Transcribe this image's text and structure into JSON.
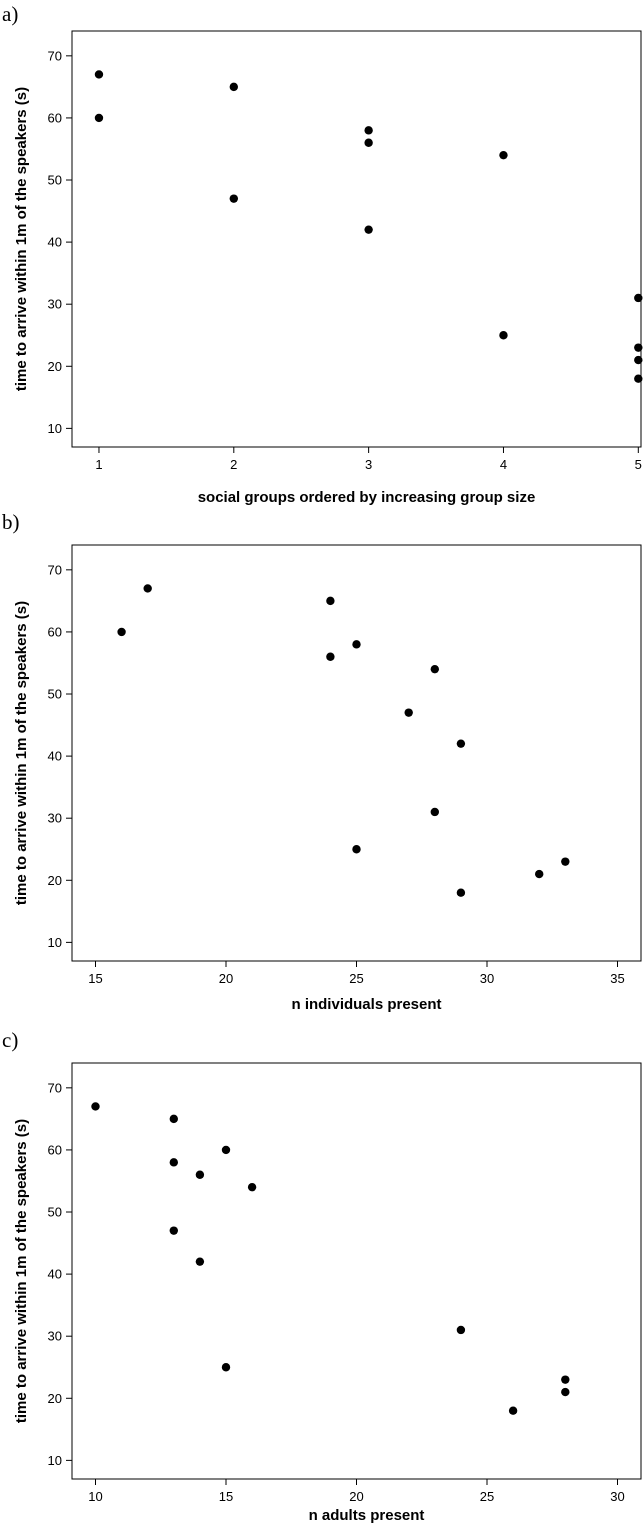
{
  "chart_data": [
    {
      "type": "scatter",
      "panel_label": "a)",
      "xlabel": "social groups ordered by increasing group size",
      "ylabel": "time to arrive within 1m of the speakers (s)",
      "xlim": [
        0.8,
        5.02
      ],
      "ylim": [
        7,
        74
      ],
      "xticks": [
        1,
        2,
        3,
        4,
        5
      ],
      "yticks": [
        10,
        20,
        30,
        40,
        50,
        60,
        70
      ],
      "grid": false,
      "points": [
        {
          "x": 1,
          "y": 67
        },
        {
          "x": 1,
          "y": 60
        },
        {
          "x": 2,
          "y": 65
        },
        {
          "x": 2,
          "y": 47
        },
        {
          "x": 3,
          "y": 58
        },
        {
          "x": 3,
          "y": 56
        },
        {
          "x": 3,
          "y": 42
        },
        {
          "x": 4,
          "y": 54
        },
        {
          "x": 4,
          "y": 25
        },
        {
          "x": 5,
          "y": 31
        },
        {
          "x": 5,
          "y": 23
        },
        {
          "x": 5,
          "y": 21
        },
        {
          "x": 5,
          "y": 18
        }
      ]
    },
    {
      "type": "scatter",
      "panel_label": "b)",
      "xlabel": "n individuals present",
      "ylabel": "time to arrive within 1m of the speakers (s)",
      "xlim": [
        14.1,
        35.9
      ],
      "ylim": [
        7,
        74
      ],
      "xticks": [
        15,
        20,
        25,
        30,
        35
      ],
      "yticks": [
        10,
        20,
        30,
        40,
        50,
        60,
        70
      ],
      "grid": false,
      "points": [
        {
          "x": 17,
          "y": 67
        },
        {
          "x": 16,
          "y": 60
        },
        {
          "x": 24,
          "y": 65
        },
        {
          "x": 25,
          "y": 58
        },
        {
          "x": 24,
          "y": 56
        },
        {
          "x": 28,
          "y": 54
        },
        {
          "x": 27,
          "y": 47
        },
        {
          "x": 29,
          "y": 42
        },
        {
          "x": 28,
          "y": 31
        },
        {
          "x": 25,
          "y": 25
        },
        {
          "x": 33,
          "y": 23
        },
        {
          "x": 32,
          "y": 21
        },
        {
          "x": 29,
          "y": 18
        }
      ]
    },
    {
      "type": "scatter",
      "panel_label": "c)",
      "xlabel": "n adults present",
      "ylabel": "time to arrive within 1m of the speakers (s)",
      "xlim": [
        9.1,
        30.9
      ],
      "ylim": [
        7,
        74
      ],
      "xticks": [
        10,
        15,
        20,
        25,
        30
      ],
      "yticks": [
        10,
        20,
        30,
        40,
        50,
        60,
        70
      ],
      "grid": false,
      "points": [
        {
          "x": 10,
          "y": 67
        },
        {
          "x": 13,
          "y": 65
        },
        {
          "x": 15,
          "y": 60
        },
        {
          "x": 13,
          "y": 58
        },
        {
          "x": 14,
          "y": 56
        },
        {
          "x": 16,
          "y": 54
        },
        {
          "x": 13,
          "y": 47
        },
        {
          "x": 14,
          "y": 42
        },
        {
          "x": 15,
          "y": 25
        },
        {
          "x": 24,
          "y": 31
        },
        {
          "x": 28,
          "y": 23
        },
        {
          "x": 28,
          "y": 21
        },
        {
          "x": 26,
          "y": 18
        }
      ]
    }
  ],
  "colors": {
    "marker": "#000000",
    "axis": "#000000",
    "background": "#ffffff"
  }
}
